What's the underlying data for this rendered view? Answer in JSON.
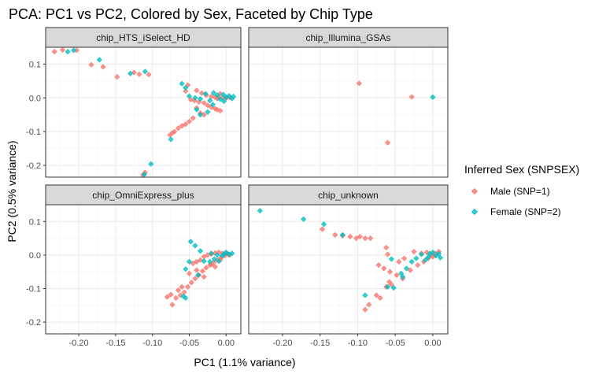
{
  "chart_data": {
    "type": "scatter",
    "title": "PCA: PC1 vs PC2, Colored by Sex, Faceted by Chip Type",
    "xlabel": "PC1 (1.1% variance)",
    "ylabel": "PC2 (0.5% variance)",
    "xlim": [
      -0.245,
      0.02
    ],
    "ylim": [
      -0.235,
      0.15
    ],
    "x_ticks": [
      -0.2,
      -0.15,
      -0.1,
      -0.05,
      0.0
    ],
    "x_tick_labels": [
      "-0.20",
      "-0.15",
      "-0.10",
      "-0.05",
      "0.00"
    ],
    "y_ticks": [
      0.1,
      0.0,
      -0.1,
      -0.2
    ],
    "y_tick_labels": [
      "0.1",
      "0.0",
      "-0.1",
      "-0.2"
    ],
    "grid": true,
    "legend": {
      "title": "Inferred Sex (SNPSEX)",
      "position": "right",
      "entries": [
        {
          "label": "Male (SNP=1)",
          "color": "#F8766D"
        },
        {
          "label": "Female (SNP=2)",
          "color": "#00BFC4"
        }
      ]
    },
    "facets": [
      {
        "name": "chip_HTS_iSelect_HD",
        "male": [
          [
            -0.233,
            0.137
          ],
          [
            -0.222,
            0.142
          ],
          [
            -0.203,
            0.141
          ],
          [
            -0.183,
            0.098
          ],
          [
            -0.167,
            0.092
          ],
          [
            -0.148,
            0.062
          ],
          [
            -0.125,
            0.075
          ],
          [
            -0.118,
            0.07
          ],
          [
            -0.105,
            0.069
          ],
          [
            -0.052,
            0.038
          ],
          [
            -0.04,
            0.022
          ],
          [
            -0.033,
            0.014
          ],
          [
            -0.027,
            0.008
          ],
          [
            -0.02,
            0.004
          ],
          [
            -0.015,
            0.002
          ],
          [
            -0.01,
            0.001
          ],
          [
            -0.005,
            0.0
          ],
          [
            0.0,
            -0.001
          ],
          [
            0.005,
            0.001
          ],
          [
            -0.012,
            -0.002
          ],
          [
            -0.008,
            0.012
          ],
          [
            -0.048,
            -0.005
          ],
          [
            -0.043,
            -0.008
          ],
          [
            -0.037,
            -0.012
          ],
          [
            -0.03,
            -0.015
          ],
          [
            -0.025,
            -0.022
          ],
          [
            -0.02,
            -0.028
          ],
          [
            -0.015,
            -0.032
          ],
          [
            -0.012,
            -0.035
          ],
          [
            -0.008,
            -0.038
          ],
          [
            -0.045,
            -0.06
          ],
          [
            -0.05,
            -0.07
          ],
          [
            -0.055,
            -0.078
          ],
          [
            -0.06,
            -0.083
          ],
          [
            -0.065,
            -0.09
          ],
          [
            -0.07,
            -0.1
          ],
          [
            -0.073,
            -0.104
          ],
          [
            -0.076,
            -0.11
          ],
          [
            -0.04,
            -0.03
          ],
          [
            -0.035,
            -0.045
          ],
          [
            -0.03,
            -0.05
          ],
          [
            -0.055,
            0.02
          ],
          [
            -0.11,
            -0.221
          ],
          [
            -0.113,
            -0.228
          ]
        ],
        "female": [
          [
            -0.215,
            0.137
          ],
          [
            -0.207,
            0.141
          ],
          [
            -0.172,
            0.113
          ],
          [
            -0.13,
            0.072
          ],
          [
            -0.11,
            0.078
          ],
          [
            -0.06,
            0.042
          ],
          [
            -0.055,
            0.03
          ],
          [
            -0.05,
            0.005
          ],
          [
            -0.042,
            0.0
          ],
          [
            -0.035,
            -0.003
          ],
          [
            -0.028,
            0.012
          ],
          [
            -0.022,
            -0.008
          ],
          [
            -0.017,
            0.015
          ],
          [
            -0.012,
            0.008
          ],
          [
            -0.008,
            -0.004
          ],
          [
            -0.004,
            0.01
          ],
          [
            0.0,
            0.002
          ],
          [
            0.004,
            0.006
          ],
          [
            0.008,
            -0.002
          ],
          [
            0.01,
            0.004
          ],
          [
            -0.003,
            -0.01
          ],
          [
            -0.018,
            -0.02
          ],
          [
            -0.025,
            -0.042
          ],
          [
            -0.035,
            -0.05
          ],
          [
            -0.04,
            -0.035
          ],
          [
            -0.075,
            -0.123
          ],
          [
            -0.102,
            -0.196
          ],
          [
            -0.111,
            -0.227
          ]
        ]
      },
      {
        "name": "chip_Illumina_GSAs",
        "male": [
          [
            -0.098,
            0.043
          ],
          [
            -0.028,
            0.003
          ],
          [
            -0.06,
            -0.133
          ]
        ],
        "female": [
          [
            0.0,
            0.002
          ]
        ]
      },
      {
        "name": "chip_OmniExpress_plus",
        "male": [
          [
            -0.08,
            -0.125
          ],
          [
            -0.075,
            -0.118
          ],
          [
            -0.073,
            -0.148
          ],
          [
            -0.068,
            -0.128
          ],
          [
            -0.062,
            -0.12
          ],
          [
            -0.057,
            -0.111
          ],
          [
            -0.052,
            -0.095
          ],
          [
            -0.047,
            -0.082
          ],
          [
            -0.042,
            -0.07
          ],
          [
            -0.037,
            -0.06
          ],
          [
            -0.032,
            -0.048
          ],
          [
            -0.027,
            -0.038
          ],
          [
            -0.022,
            -0.03
          ],
          [
            -0.017,
            -0.022
          ],
          [
            -0.012,
            -0.015
          ],
          [
            -0.007,
            -0.008
          ],
          [
            -0.002,
            -0.002
          ],
          [
            0.003,
            0.002
          ],
          [
            -0.03,
            -0.005
          ],
          [
            -0.025,
            0.0
          ],
          [
            -0.02,
            0.003
          ],
          [
            -0.015,
            0.006
          ],
          [
            -0.01,
            0.008
          ],
          [
            -0.005,
            0.005
          ],
          [
            0.0,
            0.004
          ],
          [
            0.005,
            0.0
          ],
          [
            -0.045,
            -0.025
          ],
          [
            -0.04,
            -0.02
          ],
          [
            -0.035,
            -0.015
          ],
          [
            -0.04,
            -0.045
          ],
          [
            -0.03,
            -0.065
          ],
          [
            -0.05,
            -0.055
          ],
          [
            -0.06,
            -0.095
          ],
          [
            -0.065,
            -0.105
          ],
          [
            -0.02,
            -0.028
          ],
          [
            -0.015,
            -0.035
          ],
          [
            -0.008,
            -0.015
          ]
        ],
        "female": [
          [
            -0.048,
            0.04
          ],
          [
            -0.042,
            0.028
          ],
          [
            -0.035,
            0.012
          ],
          [
            -0.03,
            -0.018
          ],
          [
            -0.022,
            -0.02
          ],
          [
            -0.016,
            -0.012
          ],
          [
            -0.01,
            -0.018
          ],
          [
            -0.005,
            -0.002
          ],
          [
            0.0,
            0.008
          ],
          [
            0.004,
            0.002
          ],
          [
            0.008,
            0.005
          ],
          [
            -0.003,
            0.003
          ],
          [
            -0.012,
            0.0
          ],
          [
            -0.02,
            0.005
          ],
          [
            -0.05,
            -0.02
          ],
          [
            -0.055,
            -0.042
          ],
          [
            -0.038,
            -0.06
          ],
          [
            -0.058,
            -0.123
          ],
          [
            -0.055,
            -0.128
          ]
        ]
      },
      {
        "name": "chip_unknown",
        "male": [
          [
            -0.147,
            0.077
          ],
          [
            -0.13,
            0.06
          ],
          [
            -0.12,
            0.058
          ],
          [
            -0.11,
            0.055
          ],
          [
            -0.102,
            0.05
          ],
          [
            -0.097,
            0.055
          ],
          [
            -0.09,
            0.05
          ],
          [
            -0.083,
            0.05
          ],
          [
            -0.062,
            0.022
          ],
          [
            -0.06,
            0.002
          ],
          [
            -0.072,
            -0.03
          ],
          [
            -0.065,
            -0.04
          ],
          [
            -0.057,
            -0.05
          ],
          [
            -0.048,
            -0.06
          ],
          [
            -0.04,
            -0.07
          ],
          [
            -0.03,
            -0.045
          ],
          [
            -0.02,
            -0.03
          ],
          [
            -0.012,
            -0.02
          ],
          [
            -0.006,
            -0.01
          ],
          [
            -0.002,
            0.0
          ],
          [
            0.003,
            0.005
          ],
          [
            0.008,
            0.01
          ],
          [
            -0.025,
            0.01
          ],
          [
            -0.015,
            0.005
          ],
          [
            -0.008,
            0.008
          ],
          [
            0.0,
            -0.005
          ],
          [
            0.005,
            0.0
          ],
          [
            -0.058,
            -0.08
          ],
          [
            -0.055,
            -0.088
          ],
          [
            -0.062,
            -0.095
          ],
          [
            -0.075,
            -0.12
          ],
          [
            -0.07,
            -0.128
          ],
          [
            -0.09,
            -0.163
          ],
          [
            -0.085,
            -0.148
          ],
          [
            -0.038,
            -0.01
          ],
          [
            -0.045,
            -0.02
          ]
        ],
        "female": [
          [
            -0.23,
            0.132
          ],
          [
            -0.172,
            0.107
          ],
          [
            -0.145,
            0.092
          ],
          [
            -0.12,
            0.06
          ],
          [
            -0.055,
            -0.012
          ],
          [
            -0.035,
            -0.04
          ],
          [
            -0.028,
            -0.02
          ],
          [
            -0.022,
            -0.01
          ],
          [
            -0.015,
            0.002
          ],
          [
            -0.01,
            -0.015
          ],
          [
            -0.004,
            0.004
          ],
          [
            0.0,
            0.008
          ],
          [
            0.004,
            -0.002
          ],
          [
            0.008,
            0.004
          ],
          [
            0.01,
            -0.008
          ],
          [
            -0.006,
            -0.006
          ],
          [
            -0.052,
            -0.098
          ],
          [
            -0.06,
            -0.095
          ],
          [
            -0.04,
            -0.065
          ],
          [
            -0.042,
            -0.055
          ],
          [
            -0.09,
            -0.12
          ]
        ]
      }
    ]
  }
}
